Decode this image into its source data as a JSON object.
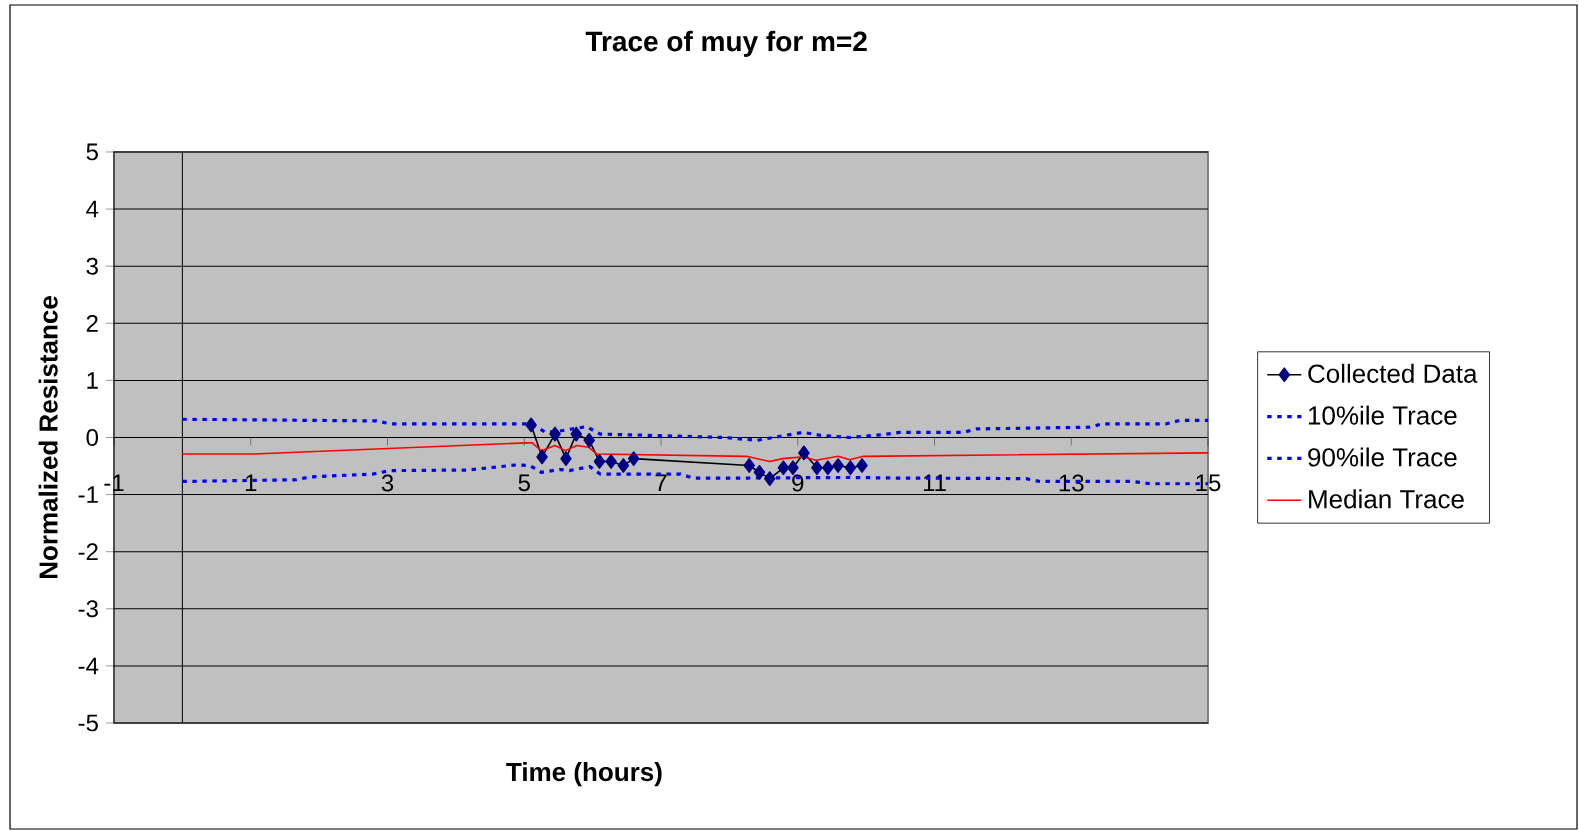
{
  "chart_data": {
    "type": "line",
    "title": "Trace of muy for m=2",
    "xlabel": "Time (hours)",
    "ylabel": "Normalized Resistance",
    "xlim": [
      -1,
      15
    ],
    "xticks": [
      -1,
      1,
      3,
      5,
      7,
      9,
      11,
      13,
      15
    ],
    "ylim": [
      -5,
      5
    ],
    "yticks": [
      -5,
      -4,
      -3,
      -2,
      -1,
      0,
      1,
      2,
      3,
      4,
      5
    ],
    "grid": "y",
    "legend": "right",
    "series": [
      {
        "name": "Collected Data",
        "color": "#000080",
        "marker": "diamond",
        "line_style": "solid",
        "x": [
          5.1,
          5.26,
          5.45,
          5.61,
          5.76,
          5.95,
          6.1,
          6.27,
          6.45,
          6.6,
          8.29,
          8.44,
          8.59,
          8.79,
          8.93,
          9.09,
          9.28,
          9.44,
          9.59,
          9.77,
          9.94
        ],
        "values": [
          0.22,
          -0.34,
          0.06,
          -0.37,
          0.06,
          -0.05,
          -0.42,
          -0.42,
          -0.49,
          -0.37,
          -0.49,
          -0.61,
          -0.72,
          -0.53,
          -0.53,
          -0.27,
          -0.53,
          -0.53,
          -0.49,
          -0.53,
          -0.49
        ]
      },
      {
        "name": "10%ile Trace",
        "color": "#0000ff",
        "marker": "none",
        "line_style": "dotted",
        "x": [
          0,
          1.67,
          1.87,
          2.79,
          3.04,
          4.16,
          4.89,
          5.08,
          5.25,
          5.52,
          5.66,
          5.96,
          6.11,
          6.3,
          7.28,
          7.47,
          8.25,
          9.76,
          10.44,
          12.34,
          12.54,
          13.9,
          14.15,
          15
        ],
        "values": [
          -0.77,
          -0.74,
          -0.69,
          -0.64,
          -0.58,
          -0.57,
          -0.48,
          -0.49,
          -0.61,
          -0.56,
          -0.58,
          -0.51,
          -0.64,
          -0.64,
          -0.64,
          -0.71,
          -0.71,
          -0.7,
          -0.71,
          -0.72,
          -0.77,
          -0.77,
          -0.81,
          -0.81
        ]
      },
      {
        "name": "90%ile Trace",
        "color": "#0000ff",
        "marker": "none",
        "line_style": "dotted",
        "x": [
          0,
          2.84,
          3.04,
          5.09,
          5.3,
          5.45,
          5.91,
          6.11,
          7.93,
          8.4,
          9.08,
          9.32,
          9.76,
          10.25,
          10.49,
          11.42,
          11.61,
          13.27,
          13.46,
          14.39,
          14.59,
          15
        ],
        "values": [
          0.32,
          0.29,
          0.24,
          0.24,
          0.1,
          0.1,
          0.19,
          0.06,
          0.0,
          -0.05,
          0.09,
          0.04,
          0.0,
          0.05,
          0.09,
          0.09,
          0.15,
          0.18,
          0.24,
          0.24,
          0.3,
          0.3
        ]
      },
      {
        "name": "Median Trace",
        "color": "#ff0000",
        "marker": "none",
        "line_style": "solid",
        "x": [
          0,
          1.04,
          5.11,
          5.25,
          5.45,
          5.6,
          5.77,
          5.94,
          6.06,
          8.25,
          8.59,
          8.78,
          9.08,
          9.27,
          9.59,
          9.76,
          9.96,
          15
        ],
        "values": [
          -0.29,
          -0.29,
          -0.09,
          -0.23,
          -0.14,
          -0.23,
          -0.14,
          -0.17,
          -0.29,
          -0.33,
          -0.42,
          -0.37,
          -0.34,
          -0.4,
          -0.33,
          -0.39,
          -0.33,
          -0.27
        ]
      }
    ]
  }
}
